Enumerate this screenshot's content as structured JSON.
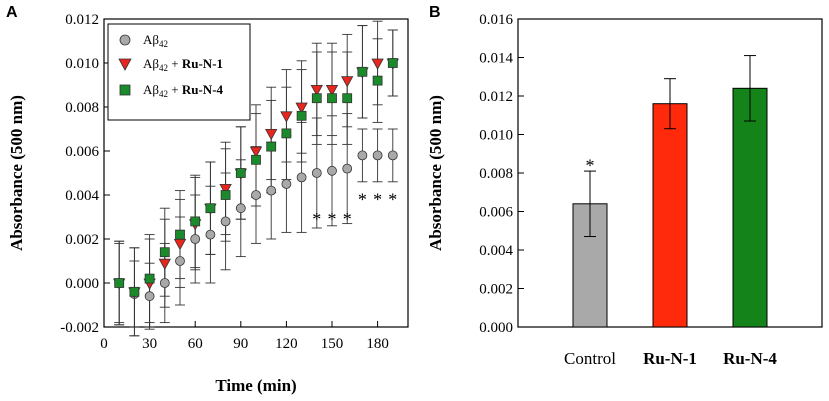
{
  "chart_data": [
    {
      "panel": "A",
      "type": "scatter",
      "xlabel": "Time (min)",
      "ylabel": "Absorbance (500 nm)",
      "xlim": [
        0,
        200
      ],
      "ylim": [
        -0.002,
        0.012
      ],
      "xticks": [
        0,
        30,
        60,
        90,
        120,
        150,
        180
      ],
      "xtick_labels": [
        "0",
        "30",
        "60",
        "90",
        "120",
        "150",
        "180"
      ],
      "yticks": [
        -0.002,
        0.0,
        0.002,
        0.004,
        0.006,
        0.008,
        0.01,
        0.012
      ],
      "ytick_labels": [
        "-0.002",
        "0.000",
        "0.002",
        "0.004",
        "0.006",
        "0.008",
        "0.010",
        "0.012"
      ],
      "legend_position": "top-left",
      "series": [
        {
          "name_prefix": "Aβ",
          "name_sub": "42",
          "name_bold": "",
          "marker": "circle",
          "color": "#a9a9a9",
          "x": [
            10,
            20,
            30,
            40,
            50,
            60,
            70,
            80,
            90,
            100,
            110,
            120,
            130,
            140,
            150,
            160,
            170,
            180,
            190
          ],
          "y": [
            0.0,
            -0.0005,
            -0.0006,
            0.0,
            0.001,
            0.002,
            0.0022,
            0.0028,
            0.0034,
            0.004,
            0.0042,
            0.0045,
            0.0048,
            0.005,
            0.0051,
            0.0052,
            0.0058,
            0.0058,
            0.0058
          ],
          "err": [
            0.0018,
            0.0015,
            0.0015,
            0.0018,
            0.002,
            0.002,
            0.0022,
            0.0022,
            0.0022,
            0.0022,
            0.0022,
            0.0022,
            0.0025,
            0.0025,
            0.0025,
            0.0025,
            0.0012,
            0.0012,
            0.0012
          ]
        },
        {
          "name_prefix": "Aβ",
          "name_sub": "42",
          "name_bold": "Ru-N-1",
          "marker": "triangle-down",
          "color": "#e8261e",
          "x": [
            10,
            20,
            30,
            40,
            50,
            60,
            70,
            80,
            90,
            100,
            110,
            120,
            130,
            140,
            150,
            160,
            170,
            180,
            190
          ],
          "y": [
            0.0,
            -0.0004,
            0.0,
            0.0009,
            0.0018,
            0.0027,
            0.0034,
            0.0043,
            0.005,
            0.006,
            0.0068,
            0.0076,
            0.008,
            0.0088,
            0.0088,
            0.0092,
            0.0096,
            0.01,
            0.01
          ],
          "err": [
            0.0019,
            0.002,
            0.002,
            0.002,
            0.002,
            0.0021,
            0.0021,
            0.0021,
            0.0021,
            0.0021,
            0.0021,
            0.0021,
            0.0021,
            0.0021,
            0.0021,
            0.0021,
            0.0021,
            0.0019,
            0.0015
          ]
        },
        {
          "name_prefix": "Aβ",
          "name_sub": "42",
          "name_bold": "Ru-N-4",
          "marker": "square",
          "color": "#1a8a2a",
          "x": [
            10,
            20,
            30,
            40,
            50,
            60,
            70,
            80,
            90,
            100,
            110,
            120,
            130,
            140,
            150,
            160,
            170,
            180,
            190
          ],
          "y": [
            0.0,
            -0.0004,
            0.0002,
            0.0014,
            0.0022,
            0.0028,
            0.0034,
            0.004,
            0.005,
            0.0056,
            0.0062,
            0.0068,
            0.0076,
            0.0084,
            0.0084,
            0.0084,
            0.0096,
            0.0092,
            0.01
          ],
          "err": [
            0.0019,
            0.002,
            0.002,
            0.002,
            0.002,
            0.0021,
            0.0021,
            0.0021,
            0.0021,
            0.0021,
            0.0021,
            0.0021,
            0.0021,
            0.0021,
            0.0021,
            0.0021,
            0.0021,
            0.0019,
            0.0015
          ]
        }
      ],
      "annotations": [
        {
          "text": "*",
          "x": 140,
          "y": 0.0029
        },
        {
          "text": "*",
          "x": 150,
          "y": 0.0029
        },
        {
          "text": "*",
          "x": 160,
          "y": 0.0029
        },
        {
          "text": "*",
          "x": 170,
          "y": 0.0038
        },
        {
          "text": "*",
          "x": 180,
          "y": 0.0038
        },
        {
          "text": "*",
          "x": 190,
          "y": 0.0038
        }
      ]
    },
    {
      "panel": "B",
      "type": "bar",
      "xlabel": "",
      "ylabel": "Absorbance (500 nm)",
      "ylim": [
        0,
        0.016
      ],
      "yticks": [
        0,
        0.002,
        0.004,
        0.006,
        0.008,
        0.01,
        0.012,
        0.014,
        0.016
      ],
      "ytick_labels": [
        "0.000",
        "0.002",
        "0.004",
        "0.006",
        "0.008",
        "0.010",
        "0.012",
        "0.014",
        "0.016"
      ],
      "categories": [
        "Control",
        "Ru-N-1",
        "Ru-N-4"
      ],
      "category_bold": [
        false,
        true,
        true
      ],
      "values": [
        0.0064,
        0.0116,
        0.0124
      ],
      "errors": [
        0.0017,
        0.0013,
        0.0017
      ],
      "colors": [
        "#a9a9a9",
        "#ff2a0c",
        "#14841a"
      ],
      "annotations": [
        {
          "text": "*",
          "category": "Control",
          "y": 0.0084
        }
      ]
    }
  ]
}
